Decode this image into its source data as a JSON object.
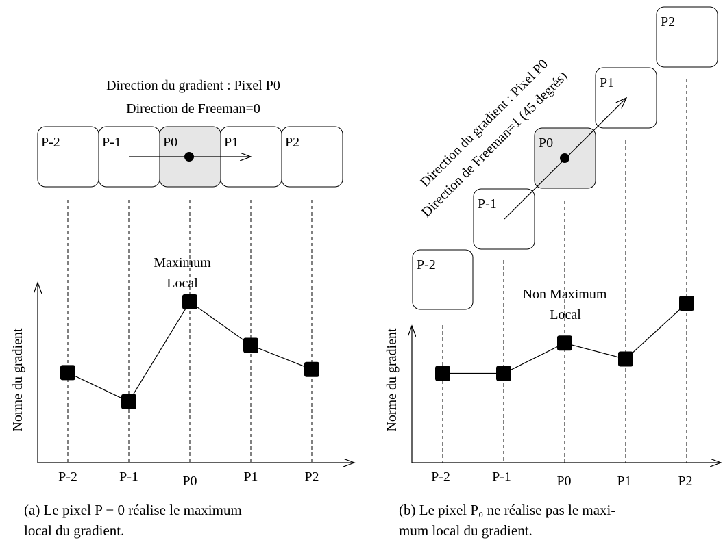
{
  "panel_a": {
    "title_line1": "Direction du gradient : Pixel P0",
    "title_line2": "Direction de Freeman=0",
    "pixels": [
      "P-2",
      "P-1",
      "P0",
      "P1",
      "P2"
    ],
    "annotation_line1": "Maximum",
    "annotation_line2": "Local",
    "ylabel": "Norme du gradient",
    "caption_line1": "(a) Le pixel P − 0 réalise le maximum",
    "caption_line2": "local du gradient."
  },
  "panel_b": {
    "title_line1": "Direction du gradient : Pixel P0",
    "title_line2": "Direction de Freeman=1 (45 degrés)",
    "pixels": [
      "P-2",
      "P-1",
      "P0",
      "P1",
      "P2"
    ],
    "annotation_line1": "Non Maximum",
    "annotation_line2": "Local",
    "ylabel": "Norme du gradient",
    "caption_line1": "(b) Le pixel P₀ ne réalise pas le maxi-",
    "caption_line2": "mum local du gradient."
  },
  "chart_data": [
    {
      "type": "line",
      "categories": [
        "P-2",
        "P-1",
        "P0",
        "P1",
        "P2"
      ],
      "values": [
        0.56,
        0.38,
        1.0,
        0.73,
        0.58
      ],
      "ylabel": "Norme du gradient"
    },
    {
      "type": "line",
      "categories": [
        "P-2",
        "P-1",
        "P0",
        "P1",
        "P2"
      ],
      "values": [
        0.56,
        0.56,
        0.75,
        0.65,
        1.0
      ],
      "ylabel": "Norme du gradient"
    }
  ],
  "colors": {
    "highlight_pixel": "#e6e6e6",
    "ink": "#000000"
  }
}
